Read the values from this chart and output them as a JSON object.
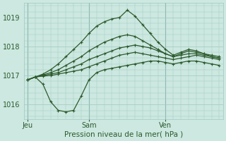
{
  "title": "Pression niveau de la mer( hPa )",
  "bg_color": "#cce8e0",
  "grid_color": "#a0c8c0",
  "line_color": "#2d5a2d",
  "marker": "+",
  "marker_size": 3,
  "linewidth": 0.9,
  "ylim": [
    1015.5,
    1019.5
  ],
  "yticks": [
    1016,
    1017,
    1018,
    1019
  ],
  "xtick_labels": [
    "Jeu",
    "Sam",
    "Ven"
  ],
  "xtick_positions": [
    0,
    8,
    18
  ],
  "x_total": 26,
  "lines": [
    [
      1016.85,
      1016.95,
      1016.7,
      1016.1,
      1015.8,
      1015.75,
      1015.8,
      1016.3,
      1016.85,
      1017.1,
      1017.2,
      1017.25,
      1017.3,
      1017.35,
      1017.4,
      1017.45,
      1017.5,
      1017.5,
      1017.45,
      1017.4,
      1017.45,
      1017.5,
      1017.5,
      1017.45,
      1017.4,
      1017.35
    ],
    [
      1016.85,
      1016.95,
      1016.98,
      1017.0,
      1017.05,
      1017.1,
      1017.15,
      1017.2,
      1017.3,
      1017.4,
      1017.5,
      1017.6,
      1017.7,
      1017.75,
      1017.8,
      1017.75,
      1017.7,
      1017.65,
      1017.6,
      1017.55,
      1017.6,
      1017.65,
      1017.7,
      1017.65,
      1017.6,
      1017.55
    ],
    [
      1016.85,
      1016.95,
      1017.0,
      1017.05,
      1017.1,
      1017.2,
      1017.3,
      1017.4,
      1017.55,
      1017.65,
      1017.75,
      1017.85,
      1017.95,
      1018.0,
      1018.05,
      1018.0,
      1017.95,
      1017.85,
      1017.75,
      1017.65,
      1017.7,
      1017.75,
      1017.75,
      1017.7,
      1017.65,
      1017.6
    ],
    [
      1016.85,
      1016.95,
      1017.02,
      1017.1,
      1017.2,
      1017.35,
      1017.5,
      1017.65,
      1017.85,
      1018.0,
      1018.15,
      1018.25,
      1018.35,
      1018.4,
      1018.35,
      1018.2,
      1018.05,
      1017.9,
      1017.75,
      1017.65,
      1017.75,
      1017.85,
      1017.8,
      1017.75,
      1017.7,
      1017.65
    ],
    [
      1016.85,
      1016.95,
      1017.05,
      1017.2,
      1017.4,
      1017.65,
      1017.9,
      1018.15,
      1018.45,
      1018.7,
      1018.85,
      1018.95,
      1019.0,
      1019.25,
      1019.05,
      1018.75,
      1018.45,
      1018.15,
      1017.9,
      1017.7,
      1017.8,
      1017.9,
      1017.85,
      1017.75,
      1017.65,
      1017.6
    ]
  ],
  "xlim": [
    -0.5,
    25.5
  ]
}
